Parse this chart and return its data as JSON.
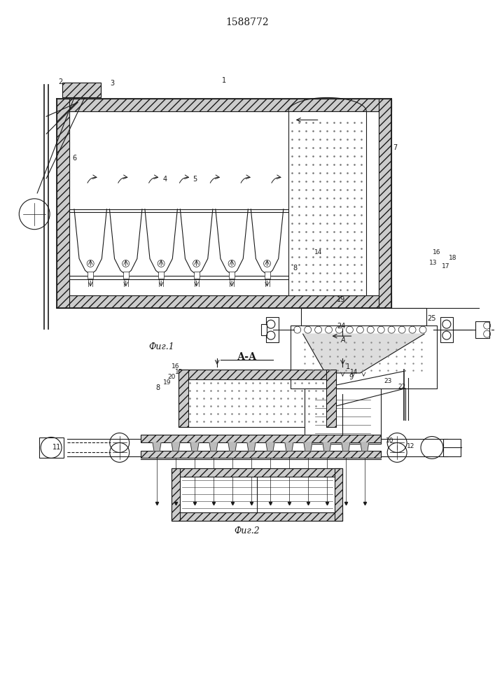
{
  "patent_number": "1588772",
  "fig1_caption": "Фиг.1",
  "fig2_caption": "Фиг.2",
  "section_label": "А-А",
  "bg_color": "#ffffff",
  "line_color": "#1a1a1a"
}
